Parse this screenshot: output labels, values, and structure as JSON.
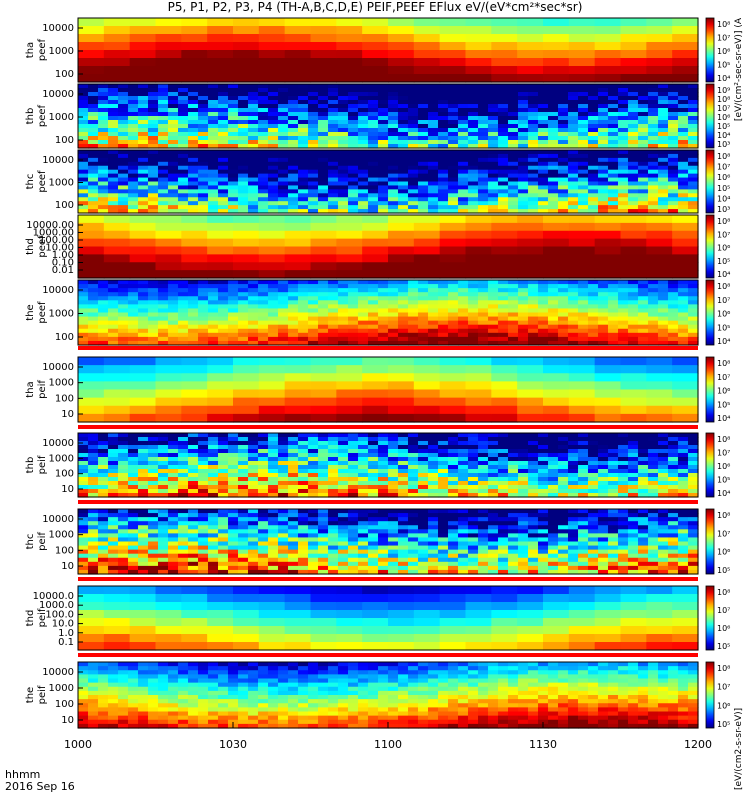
{
  "title": "P5, P1, P2, P3, P4 (TH-A,B,C,D,E) PEIF,PEEF EFlux eV/(eV*cm²*sec*sr)",
  "colorbar_top_label": "[eV/(cm²-sec-sr-eV)] (A",
  "colorbar_bottom_label": "[eV/(cm2-s-sr-eV)]",
  "footer": {
    "line1": "hhmm",
    "line2": "2016 Sep 16"
  },
  "chart_data": {
    "type": "heatmap",
    "date": "2016 Sep 16",
    "x_ticks": [
      "1000",
      "1030",
      "1100",
      "1130",
      "1200"
    ],
    "x_range_hhmm": [
      "1000",
      "1200"
    ],
    "y_scale": "log",
    "panels": [
      {
        "label1": "tha",
        "label2": "peef",
        "yticks": [
          "10000",
          "1000",
          "100"
        ],
        "cbar": [
          "10⁸",
          "10⁷",
          "10⁶",
          "10⁵",
          "10⁴"
        ],
        "mode": "broad",
        "level": 0.82
      },
      {
        "label1": "thb",
        "label2": "peef",
        "yticks": [
          "10000",
          "1000",
          "100"
        ],
        "cbar": [
          "10⁹",
          "10⁸",
          "10⁷",
          "10⁶",
          "10⁵",
          "10⁴",
          "10³"
        ],
        "mode": "noisy",
        "level": 0.2
      },
      {
        "label1": "thc",
        "label2": "peef",
        "yticks": [
          "10000",
          "1000",
          "100"
        ],
        "cbar": [
          "10⁸",
          "10⁷",
          "10⁶",
          "10⁵",
          "10⁴",
          "10³"
        ],
        "mode": "noisy",
        "level": 0.2
      },
      {
        "label1": "thd",
        "label2": "peef",
        "yticks": [
          "10000.00",
          "1000.00",
          "100.00",
          "10.00",
          "1.00",
          "0.10",
          "0.01"
        ],
        "cbar": [
          "10⁸",
          "10⁷",
          "10⁶",
          "10⁵",
          "10⁴"
        ],
        "mode": "broad",
        "level": 0.85
      },
      {
        "label1": "the",
        "label2": "peef",
        "yticks": [
          "10000",
          "1000",
          "100"
        ],
        "cbar": [
          "10⁸",
          "10⁷",
          "10⁶",
          "10⁵",
          "10⁴"
        ],
        "mode": "mid",
        "level": 0.55
      },
      {
        "label1": "tha",
        "label2": "peif",
        "yticks": [
          "10000",
          "1000",
          "100",
          "10"
        ],
        "cbar": [
          "10⁸",
          "10⁷",
          "10⁶",
          "10⁵",
          "10⁴"
        ],
        "mode": "broad",
        "level": 0.6
      },
      {
        "label1": "thb",
        "label2": "peif",
        "yticks": [
          "10000",
          "1000",
          "100",
          "10"
        ],
        "cbar": [
          "10⁸",
          "10⁷",
          "10⁶",
          "10⁵",
          "10⁴"
        ],
        "mode": "noisy",
        "level": 0.35
      },
      {
        "label1": "thc",
        "label2": "peif",
        "yticks": [
          "10000",
          "1000",
          "100",
          "10"
        ],
        "cbar": [
          "10⁸",
          "10⁷",
          "10⁶",
          "10⁵"
        ],
        "mode": "noisy",
        "level": 0.4
      },
      {
        "label1": "thd",
        "label2": "peif",
        "yticks": [
          "10000.0",
          "1000.0",
          "100.0",
          "10.0",
          "1.0",
          "0.1"
        ],
        "cbar": [
          "10⁸",
          "10⁷",
          "10⁶",
          "10⁵"
        ],
        "mode": "broad",
        "level": 0.45
      },
      {
        "label1": "the",
        "label2": "peif",
        "yticks": [
          "10000",
          "1000",
          "100",
          "10"
        ],
        "cbar": [
          "10⁸",
          "10⁷",
          "10⁶",
          "10⁵"
        ],
        "mode": "mid",
        "level": 0.55
      }
    ]
  }
}
